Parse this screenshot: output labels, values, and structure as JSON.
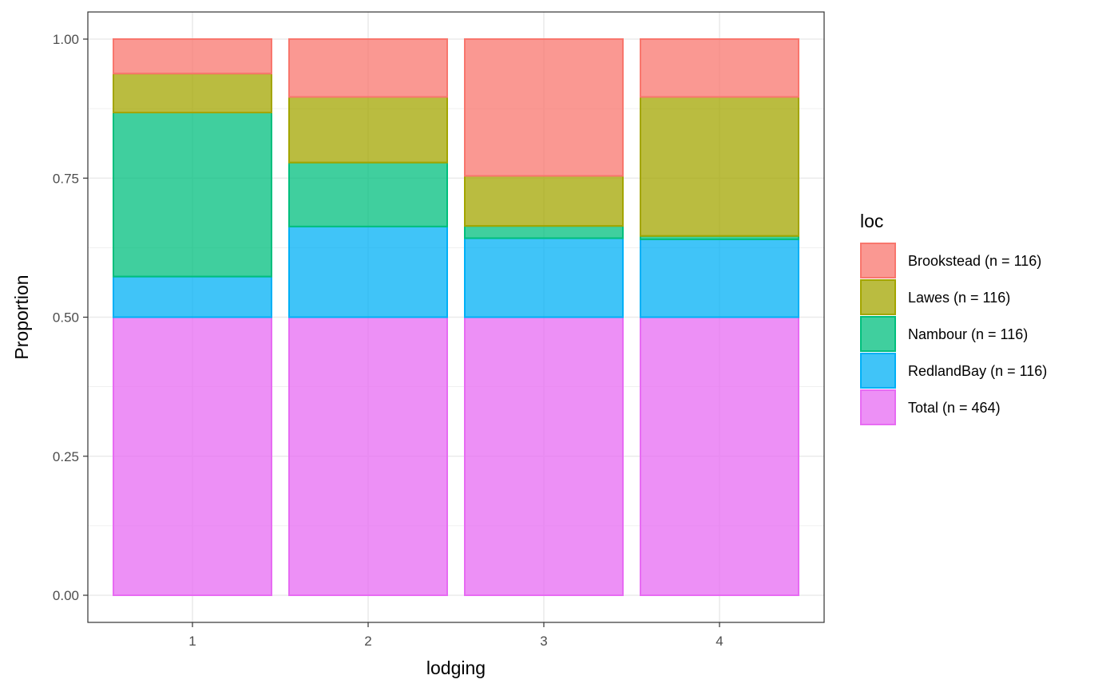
{
  "chart_data": {
    "type": "bar",
    "stacked": true,
    "categories": [
      "1",
      "2",
      "3",
      "4"
    ],
    "xlabel": "lodging",
    "ylabel": "Proportion",
    "ylim": [
      0,
      1
    ],
    "yticks": [
      "0.00",
      "0.25",
      "0.50",
      "0.75",
      "1.00"
    ],
    "grid": true,
    "legend": {
      "title": "loc",
      "position": "right"
    },
    "series": [
      {
        "name": "Total (n = 464)",
        "color": "#E76BF3",
        "values": [
          0.5,
          0.5,
          0.5,
          0.5
        ]
      },
      {
        "name": "RedlandBay (n = 116)",
        "color": "#00B0F6",
        "values": [
          0.073,
          0.163,
          0.142,
          0.14
        ]
      },
      {
        "name": "Nambour (n = 116)",
        "color": "#00BF7D",
        "values": [
          0.295,
          0.115,
          0.022,
          0.006
        ]
      },
      {
        "name": "Lawes (n = 116)",
        "color": "#A3A500",
        "values": [
          0.07,
          0.118,
          0.09,
          0.25
        ]
      },
      {
        "name": "Brookstead (n = 116)",
        "color": "#F8766D",
        "values": [
          0.062,
          0.104,
          0.246,
          0.104
        ]
      }
    ],
    "legend_order": [
      "Brookstead (n = 116)",
      "Lawes (n = 116)",
      "Nambour (n = 116)",
      "RedlandBay (n = 116)",
      "Total (n = 464)"
    ]
  }
}
